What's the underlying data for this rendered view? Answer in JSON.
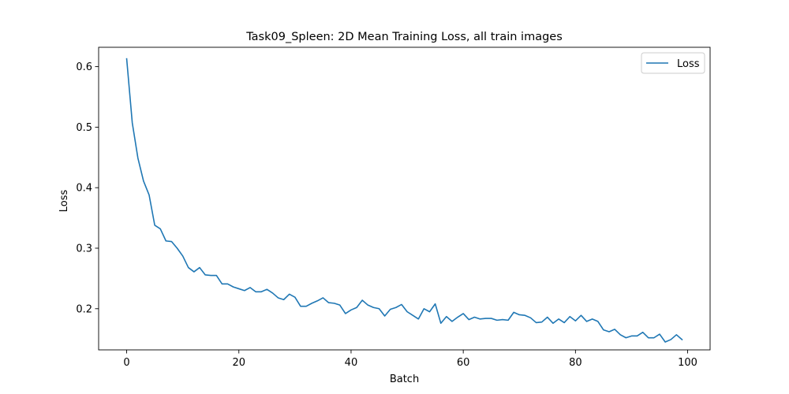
{
  "chart_data": {
    "type": "line",
    "title": "Task09_Spleen: 2D Mean Training Loss, all train images",
    "xlabel": "Batch",
    "ylabel": "Loss",
    "xlim": [
      -5,
      104
    ],
    "ylim": [
      0.132,
      0.632
    ],
    "xticks": [
      0,
      20,
      40,
      60,
      80,
      100
    ],
    "yticks": [
      0.2,
      0.3,
      0.4,
      0.5,
      0.6
    ],
    "xtick_labels": [
      "0",
      "20",
      "40",
      "60",
      "80",
      "100"
    ],
    "ytick_labels": [
      "0.2",
      "0.3",
      "0.4",
      "0.5",
      "0.6"
    ],
    "grid": false,
    "legend": {
      "position": "top-right",
      "entries": [
        "Loss"
      ]
    },
    "series": [
      {
        "name": "Loss",
        "color": "#1f77b4",
        "x": [
          0,
          1,
          2,
          3,
          4,
          5,
          6,
          7,
          8,
          9,
          10,
          11,
          12,
          13,
          14,
          15,
          16,
          17,
          18,
          19,
          20,
          21,
          22,
          23,
          24,
          25,
          26,
          27,
          28,
          29,
          30,
          31,
          32,
          33,
          34,
          35,
          36,
          37,
          38,
          39,
          40,
          41,
          42,
          43,
          44,
          45,
          46,
          47,
          48,
          49,
          50,
          51,
          52,
          53,
          54,
          55,
          56,
          57,
          58,
          59,
          60,
          61,
          62,
          63,
          64,
          65,
          66,
          67,
          68,
          69,
          70,
          71,
          72,
          73,
          74,
          75,
          76,
          77,
          78,
          79,
          80,
          81,
          82,
          83,
          84,
          85,
          86,
          87,
          88,
          89,
          90,
          91,
          92,
          93,
          94,
          95,
          96,
          97,
          98,
          99
        ],
        "values": [
          0.613,
          0.507,
          0.449,
          0.411,
          0.388,
          0.338,
          0.332,
          0.312,
          0.311,
          0.3,
          0.287,
          0.268,
          0.261,
          0.268,
          0.256,
          0.255,
          0.255,
          0.241,
          0.241,
          0.236,
          0.233,
          0.23,
          0.235,
          0.228,
          0.228,
          0.232,
          0.226,
          0.218,
          0.215,
          0.224,
          0.219,
          0.204,
          0.204,
          0.209,
          0.213,
          0.218,
          0.21,
          0.209,
          0.206,
          0.192,
          0.198,
          0.202,
          0.214,
          0.206,
          0.202,
          0.2,
          0.188,
          0.199,
          0.202,
          0.207,
          0.195,
          0.189,
          0.183,
          0.2,
          0.195,
          0.208,
          0.176,
          0.187,
          0.179,
          0.186,
          0.192,
          0.182,
          0.186,
          0.183,
          0.184,
          0.184,
          0.181,
          0.182,
          0.181,
          0.194,
          0.19,
          0.189,
          0.185,
          0.177,
          0.178,
          0.186,
          0.176,
          0.183,
          0.177,
          0.187,
          0.18,
          0.189,
          0.179,
          0.183,
          0.179,
          0.165,
          0.162,
          0.166,
          0.157,
          0.152,
          0.155,
          0.155,
          0.161,
          0.152,
          0.152,
          0.158,
          0.145,
          0.149,
          0.157,
          0.149
        ]
      }
    ]
  }
}
